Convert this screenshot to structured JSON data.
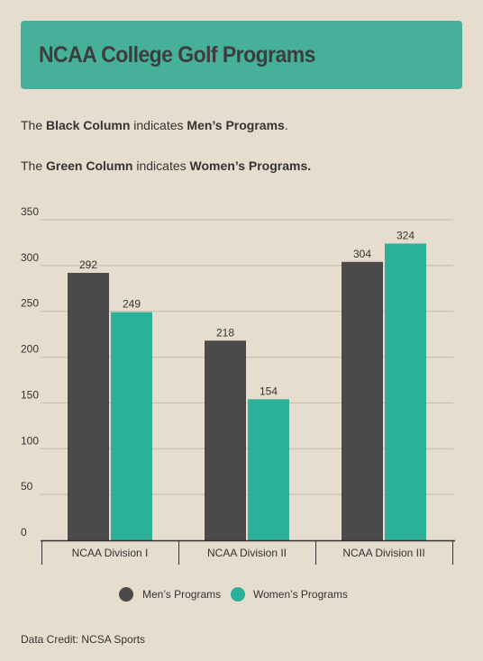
{
  "header": {
    "title": "NCAA College Golf Programs"
  },
  "notes": {
    "line1": {
      "p1": "The ",
      "b1": "Black Column",
      "p2": " indicates ",
      "b2": "Men’s Programs",
      "p3": "."
    },
    "line2": {
      "p1": "The ",
      "b1": "Green Column",
      "p2": " indicates ",
      "b2": "Women’s Programs.",
      "p3": ""
    }
  },
  "chart_data": {
    "type": "bar",
    "categories": [
      "NCAA Division I",
      "NCAA Division II",
      "NCAA Division III"
    ],
    "series": [
      {
        "name": "Men’s Programs",
        "values": [
          292,
          218,
          304
        ],
        "color": "#4a4a4a"
      },
      {
        "name": "Women’s Programs",
        "values": [
          249,
          154,
          324
        ],
        "color": "#2bb09a"
      }
    ],
    "ylim": [
      0,
      350
    ],
    "yticks": [
      0,
      50,
      100,
      150,
      200,
      250,
      300,
      350
    ],
    "grid": true,
    "legend": "bottom",
    "data_labels": true
  },
  "credit": "Data Credit: NCSA Sports"
}
